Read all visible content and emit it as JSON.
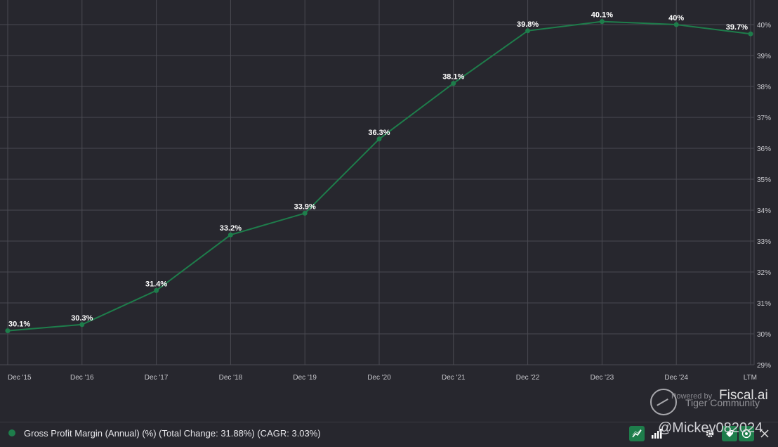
{
  "chart_data": {
    "type": "line",
    "categories": [
      "Dec '15",
      "Dec '16",
      "Dec '17",
      "Dec '18",
      "Dec '19",
      "Dec '20",
      "Dec '21",
      "Dec '22",
      "Dec '23",
      "Dec '24",
      "LTM"
    ],
    "series": [
      {
        "name": "Gross Profit Margin (Annual) (%) (Total Change: 31.88%) (CAGR: 3.03%)",
        "values": [
          30.1,
          30.3,
          31.4,
          33.2,
          33.9,
          36.3,
          38.1,
          39.8,
          40.1,
          40.0,
          39.7
        ],
        "labels": [
          "30.1%",
          "30.3%",
          "31.4%",
          "33.2%",
          "33.9%",
          "36.3%",
          "38.1%",
          "39.8%",
          "40.1%",
          "40%",
          "39.7%"
        ],
        "color": "#1e7d4b"
      }
    ],
    "ylim": [
      29,
      40.5
    ],
    "yticks": [
      29,
      30,
      31,
      32,
      33,
      34,
      35,
      36,
      37,
      38,
      39,
      40
    ],
    "ytick_labels": [
      "29%",
      "30%",
      "31%",
      "32%",
      "33%",
      "34%",
      "35%",
      "36%",
      "37%",
      "38%",
      "39%",
      "40%"
    ],
    "y_axis_position": "right",
    "grid": true,
    "legend_position": "bottom-left"
  },
  "colors": {
    "background": "#27272e",
    "grid": "#4a4a52",
    "series": "#1e7d4b"
  },
  "legend": {
    "text": "Gross Profit Margin (Annual) (%) (Total Change: 31.88%) (CAGR: 3.03%)"
  },
  "watermark": {
    "powered_by": "Powered by",
    "brand": "Fiscal.ai",
    "community": "Tiger Community",
    "handle": "@Mickey082024"
  },
  "toolbar": {
    "icons": [
      "trend-icon",
      "bar-chart-icon",
      "settings-icon",
      "tag-icon",
      "target-icon",
      "close-icon"
    ]
  }
}
